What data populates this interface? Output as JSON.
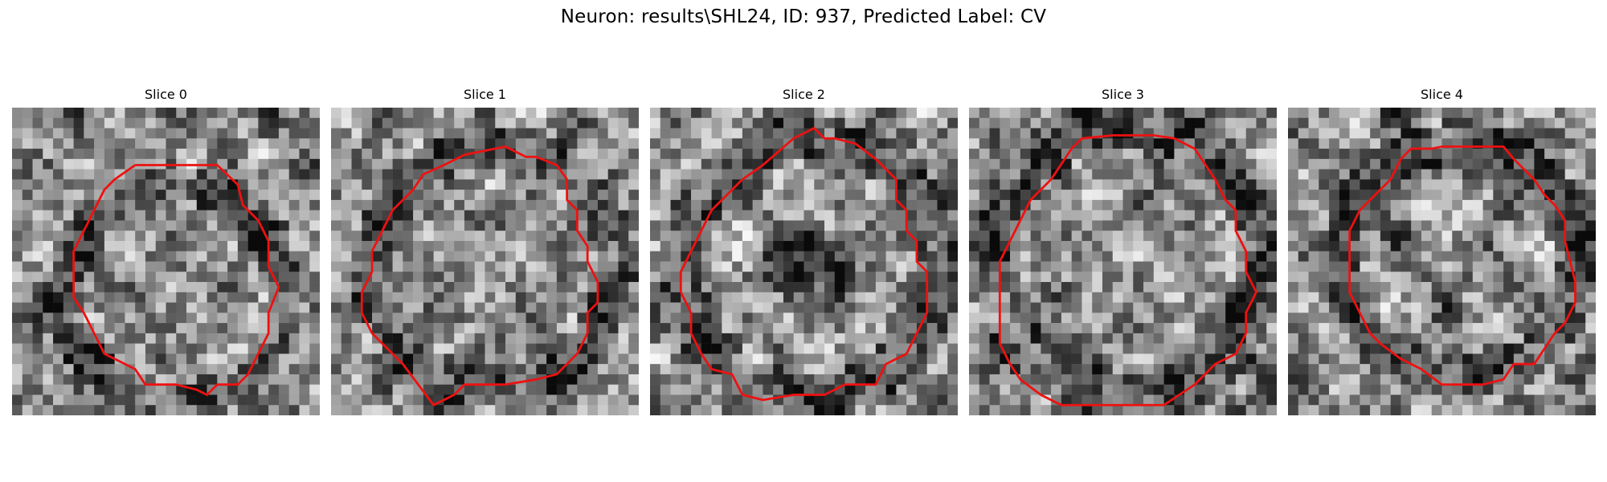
{
  "figure": {
    "title": "Neuron: results\\SHL24, ID: 937, Predicted Label: CV",
    "contour_color": "#ee1111"
  },
  "panels": [
    {
      "title": "Slice 0"
    },
    {
      "title": "Slice 1"
    },
    {
      "title": "Slice 2"
    },
    {
      "title": "Slice 3"
    },
    {
      "title": "Slice 4"
    }
  ]
}
